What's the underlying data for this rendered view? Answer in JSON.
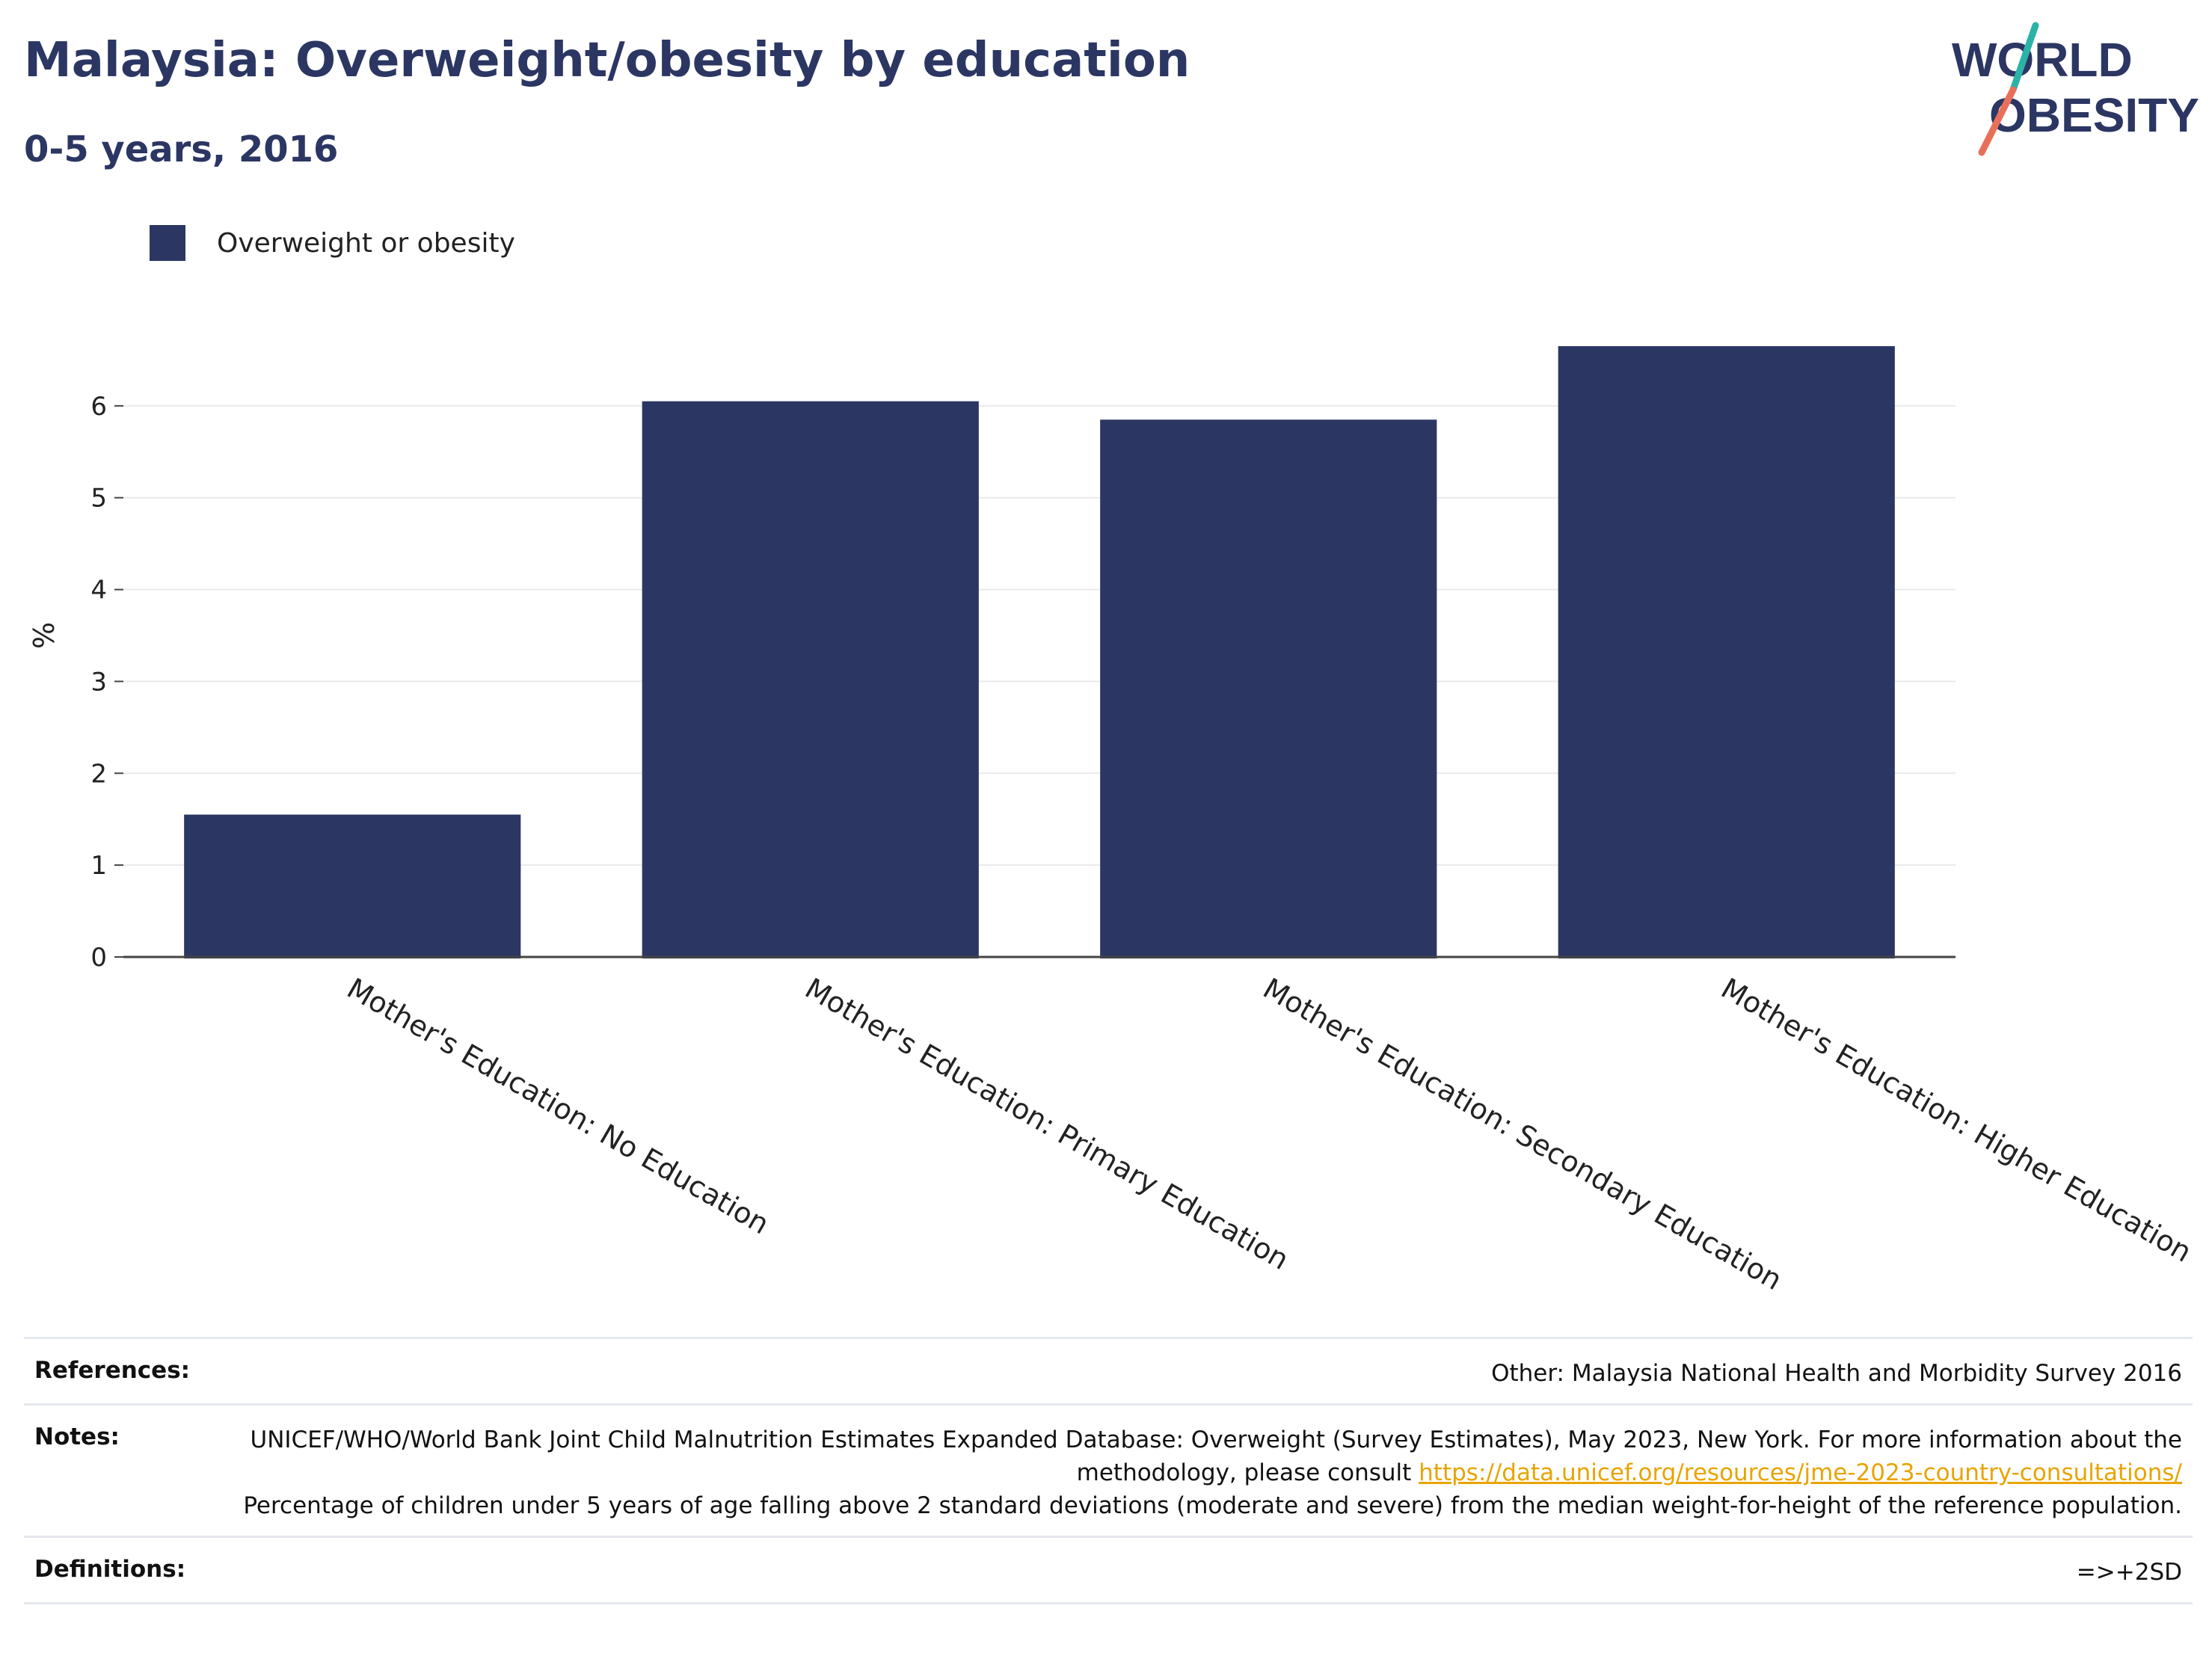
{
  "header": {
    "title": "Malaysia: Overweight/obesity by education",
    "subtitle": "0-5 years, 2016"
  },
  "logo": {
    "line1": "WORLD",
    "line2": "OBESITY",
    "colors": {
      "text": "#2b3663",
      "slash_top": "#2bb3a8",
      "slash_bottom": "#e8705a"
    }
  },
  "legend": {
    "label": "Overweight or obesity",
    "color": "#2b3663"
  },
  "chart_data": {
    "type": "bar",
    "categories": [
      "Mother's Education: No Education",
      "Mother's Education: Primary Education",
      "Mother's Education: Secondary Education",
      "Mother's Education: Higher Education"
    ],
    "series": [
      {
        "name": "Overweight or obesity",
        "values": [
          1.55,
          6.05,
          5.85,
          6.65
        ],
        "color": "#2b3663"
      }
    ],
    "ylabel": "%",
    "ylim": [
      0,
      7
    ],
    "yticks": [
      0,
      1,
      2,
      3,
      4,
      5,
      6
    ],
    "grid": true,
    "legend_position": "top-left"
  },
  "footer": {
    "references_label": "References:",
    "references_value": "Other: Malaysia National Health and Morbidity Survey 2016",
    "notes_label": "Notes:",
    "notes_text1": "UNICEF/WHO/World Bank Joint Child Malnutrition Estimates Expanded Database: Overweight (Survey Estimates), May 2023, New York. For more information about the methodology, please consult ",
    "notes_link": "https://data.unicef.org/resources/jme-2023-country-consultations/",
    "notes_text2": "Percentage of children under 5 years of age falling above 2 standard deviations (moderate and severe) from the median weight-for-height of the reference population.",
    "definitions_label": "Definitions:",
    "definitions_value": "=>+2SD"
  }
}
